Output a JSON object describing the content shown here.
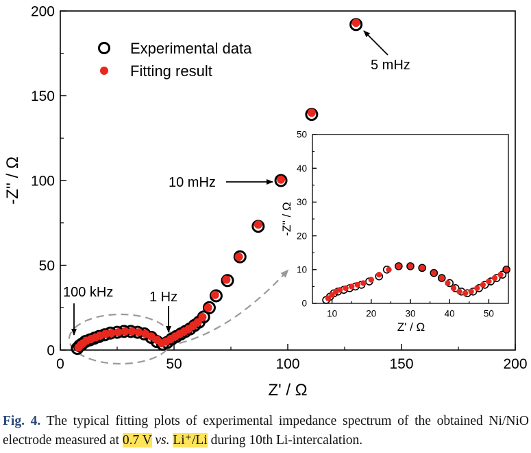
{
  "chart_data": [
    {
      "type": "scatter",
      "xlabel": "Z' / Ω",
      "ylabel": "-Z'' / Ω",
      "xlim": [
        0,
        200
      ],
      "ylim": [
        0,
        200
      ],
      "x_ticks": [
        "0",
        "50",
        "100",
        "150",
        "200"
      ],
      "y_ticks": [
        "0",
        "50",
        "100",
        "150",
        "200"
      ],
      "grid": false,
      "legend_position": "top-left",
      "series": [
        {
          "name": "Experimental data",
          "marker": "open-circle",
          "color": "#000000",
          "x": [
            7.5,
            8.5,
            9.5,
            11,
            13,
            15,
            17,
            19.5,
            22,
            25,
            28,
            31,
            34,
            37,
            40,
            42.5,
            45,
            47,
            49,
            51,
            53,
            55,
            57,
            59,
            61,
            63,
            65.5,
            68.5,
            73.5,
            79,
            87,
            97,
            110.5,
            130
          ],
          "y": [
            1,
            2.5,
            3.5,
            5,
            6,
            7,
            8,
            9,
            10,
            10.5,
            11,
            11,
            10.5,
            9.5,
            7.5,
            5,
            3.5,
            4.5,
            6.5,
            8,
            9.5,
            11,
            12.5,
            14.5,
            16.5,
            19.5,
            25,
            32,
            41,
            55,
            73,
            100,
            139,
            192
          ]
        },
        {
          "name": "Fitting result",
          "marker": "filled-circle",
          "color": "#e8281f",
          "x": [
            8,
            9,
            10,
            11.5,
            13.5,
            15.5,
            17.5,
            20,
            22.5,
            25.5,
            28.5,
            31.5,
            34.5,
            37.5,
            40,
            42.5,
            44.5,
            46.5,
            48.5,
            50.5,
            52.5,
            54.5,
            56.5,
            58.5,
            60.5,
            62.5,
            65,
            68,
            73,
            78.5,
            87,
            97,
            110.5,
            130
          ],
          "y": [
            1.5,
            3,
            4,
            5.5,
            6.5,
            7.5,
            8.5,
            9.5,
            10,
            10.5,
            11,
            11,
            10.5,
            9.5,
            8,
            6,
            4,
            5,
            6.5,
            8,
            9.5,
            11,
            12.5,
            14.5,
            16.5,
            19.5,
            25,
            32.5,
            41.5,
            55,
            74,
            100.5,
            140,
            193
          ]
        }
      ],
      "annotations": [
        "100 kHz",
        "1 Hz",
        "10 mHz",
        "5 mHz"
      ]
    },
    {
      "type": "scatter",
      "role": "inset",
      "xlabel": "Z' / Ω",
      "ylabel": "-Z'' / Ω",
      "xlim": [
        5,
        55
      ],
      "ylim": [
        0,
        50
      ],
      "x_ticks": [
        "10",
        "20",
        "30",
        "40",
        "50"
      ],
      "y_ticks": [
        "0",
        "10",
        "20",
        "30",
        "40",
        "50"
      ],
      "series": [
        {
          "name": "Experimental data",
          "marker": "open-circle",
          "color": "#000000",
          "x": [
            8.5,
            9.5,
            10.5,
            11.5,
            13,
            14.5,
            16,
            17.5,
            19.5,
            22,
            24,
            27,
            30,
            33,
            36,
            38,
            40,
            41.5,
            43,
            44.5,
            46,
            47.5,
            49,
            50.5,
            52,
            53.5,
            54.5
          ],
          "y": [
            1,
            2,
            3,
            3.5,
            4,
            4.5,
            5,
            5.5,
            6.5,
            8,
            10,
            11,
            11,
            10.5,
            9,
            7.5,
            6,
            4.5,
            3.5,
            3,
            3.5,
            4.5,
            5.5,
            6.5,
            7.5,
            8.5,
            10
          ]
        },
        {
          "name": "Fitting result",
          "marker": "filled-circle",
          "color": "#e8281f",
          "x": [
            9,
            10,
            11,
            12,
            13.5,
            15,
            16.5,
            18,
            20,
            22,
            24.5,
            27,
            30,
            33,
            36,
            38,
            39.5,
            41,
            42.5,
            44,
            45.5,
            47,
            48.5,
            50,
            51.5,
            53,
            54.5
          ],
          "y": [
            1.5,
            2.5,
            3.5,
            4,
            4.5,
            5,
            5.5,
            6,
            7,
            8.5,
            10,
            11,
            11,
            10.5,
            9,
            7.5,
            6,
            4.5,
            3.5,
            3,
            3.5,
            4.5,
            5.5,
            6.5,
            7.5,
            8.5,
            10
          ]
        }
      ]
    }
  ],
  "caption": {
    "label": "Fig. 4.",
    "text_1": " The typical fitting plots of experimental impedance spectrum of the obtained Ni/NiO electrode measured at ",
    "hl_1": "0.7 V",
    "vs": "vs.",
    "hl_2": "Li⁺/Li",
    "text_2": " during 10th Li-intercalation."
  }
}
